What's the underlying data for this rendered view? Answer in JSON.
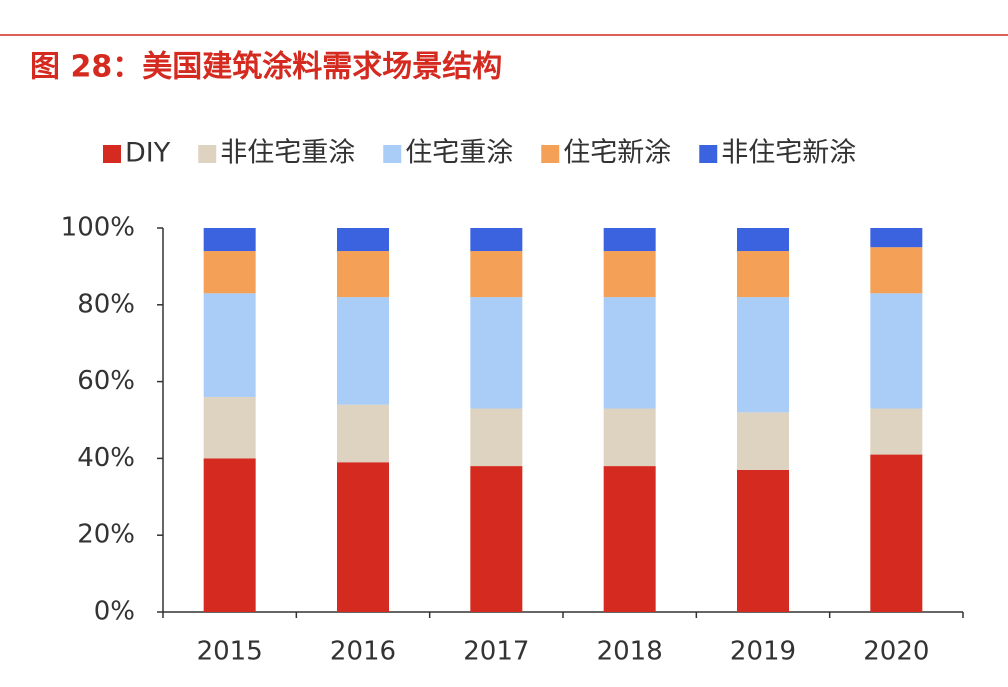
{
  "chart_data": {
    "type": "stacked_bar",
    "title": "图 28：美国建筑涂料需求场景结构",
    "categories": [
      "2015",
      "2016",
      "2017",
      "2018",
      "2019",
      "2020"
    ],
    "series": [
      {
        "name": "DIY",
        "color": "#d42a20",
        "values": [
          40,
          39,
          38,
          38,
          37,
          41
        ]
      },
      {
        "name": "非住宅重涂",
        "color": "#ddd3c0",
        "values": [
          16,
          15,
          15,
          15,
          15,
          12
        ]
      },
      {
        "name": "住宅重涂",
        "color": "#a9cdf7",
        "values": [
          27,
          28,
          29,
          29,
          30,
          30
        ]
      },
      {
        "name": "住宅新涂",
        "color": "#f5a057",
        "values": [
          11,
          12,
          12,
          12,
          12,
          12
        ]
      },
      {
        "name": "非住宅新涂",
        "color": "#3b63e0",
        "values": [
          6,
          6,
          6,
          6,
          6,
          5
        ]
      }
    ],
    "ylim": [
      0,
      100
    ],
    "yticks": [
      {
        "value": 0,
        "label": "0%"
      },
      {
        "value": 20,
        "label": "20%"
      },
      {
        "value": 40,
        "label": "40%"
      },
      {
        "value": 60,
        "label": "60%"
      },
      {
        "value": 80,
        "label": "80%"
      },
      {
        "value": 100,
        "label": "100%"
      }
    ],
    "legend": "top",
    "grid": false
  }
}
